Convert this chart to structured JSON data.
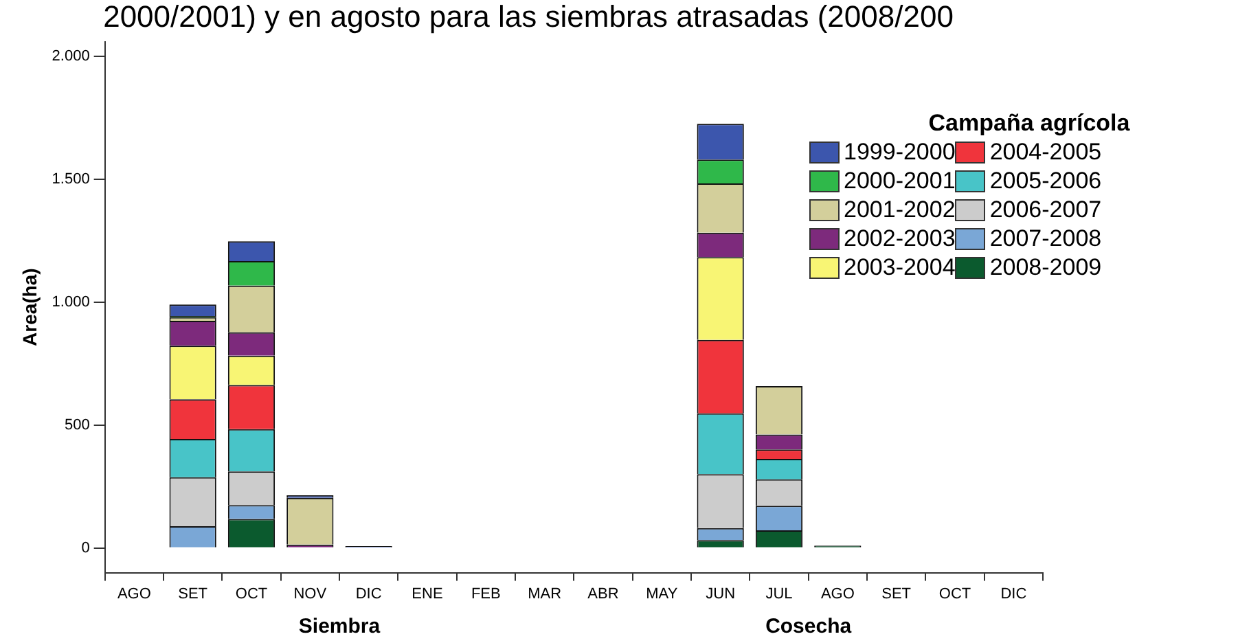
{
  "chart_data": {
    "type": "bar",
    "title": "2000/2001) y en agosto para las siembras atrasadas (2008/200",
    "ylabel": "Area(ha)",
    "legend_title": "Campaña agrícola",
    "stacked": true,
    "legend": "top right",
    "categories": [
      "AGO",
      "SET",
      "OCT",
      "NOV",
      "DIC",
      "ENE",
      "FEB",
      "MAR",
      "ABR",
      "MAY",
      "JUN",
      "JUL",
      "AGO",
      "SET",
      "OCT",
      "DIC"
    ],
    "ylim": [
      -100,
      2060
    ],
    "yticks": [
      0,
      500,
      {
        "value": 1000,
        "label": "1.000"
      },
      {
        "value": 1500,
        "label": "1.500"
      },
      {
        "value": 2000,
        "label": "2.000"
      }
    ],
    "annotations": [
      "Siembra",
      "Cosecha"
    ],
    "series": [
      {
        "name": "2008-2009",
        "color": "#0b5a2e",
        "values": [
          null,
          null,
          118,
          null,
          null,
          null,
          null,
          null,
          null,
          null,
          32,
          72,
          10,
          null,
          null,
          null
        ]
      },
      {
        "name": "2007-2008",
        "color": "#7aa7d6",
        "values": [
          null,
          89,
          57,
          null,
          null,
          null,
          null,
          null,
          null,
          null,
          49,
          100,
          null,
          null,
          null,
          null
        ]
      },
      {
        "name": "2006-2007",
        "color": "#cccccc",
        "values": [
          null,
          199,
          137,
          null,
          null,
          null,
          null,
          null,
          null,
          null,
          220,
          108,
          null,
          null,
          null,
          null
        ]
      },
      {
        "name": "2005-2006",
        "color": "#48c4c8",
        "values": [
          null,
          156,
          172,
          null,
          null,
          null,
          null,
          null,
          null,
          null,
          247,
          83,
          null,
          null,
          null,
          null
        ]
      },
      {
        "name": "2004-2005",
        "color": "#f0343c",
        "values": [
          null,
          161,
          179,
          null,
          null,
          null,
          null,
          null,
          null,
          null,
          299,
          38,
          null,
          null,
          null,
          null
        ]
      },
      {
        "name": "2003-2004",
        "color": "#f8f574",
        "values": [
          null,
          218,
          120,
          null,
          null,
          null,
          null,
          null,
          null,
          null,
          337,
          null,
          null,
          null,
          null,
          null
        ]
      },
      {
        "name": "2002-2003",
        "color": "#7d2a7c",
        "values": [
          null,
          102,
          95,
          14,
          null,
          null,
          null,
          null,
          null,
          null,
          99,
          61,
          null,
          null,
          null,
          null
        ]
      },
      {
        "name": "2001-2002",
        "color": "#d3cf9b",
        "values": [
          null,
          14,
          190,
          190,
          null,
          null,
          null,
          null,
          null,
          null,
          201,
          197,
          null,
          null,
          null,
          null
        ]
      },
      {
        "name": "2000-2001",
        "color": "#2fb84a",
        "values": [
          null,
          5,
          100,
          null,
          null,
          null,
          null,
          null,
          null,
          null,
          97,
          null,
          null,
          null,
          null,
          null
        ]
      },
      {
        "name": "1999-2000",
        "color": "#3c56ad",
        "values": [
          null,
          47,
          80,
          11,
          8,
          null,
          null,
          null,
          null,
          null,
          145,
          null,
          null,
          null,
          null,
          null
        ]
      }
    ]
  }
}
